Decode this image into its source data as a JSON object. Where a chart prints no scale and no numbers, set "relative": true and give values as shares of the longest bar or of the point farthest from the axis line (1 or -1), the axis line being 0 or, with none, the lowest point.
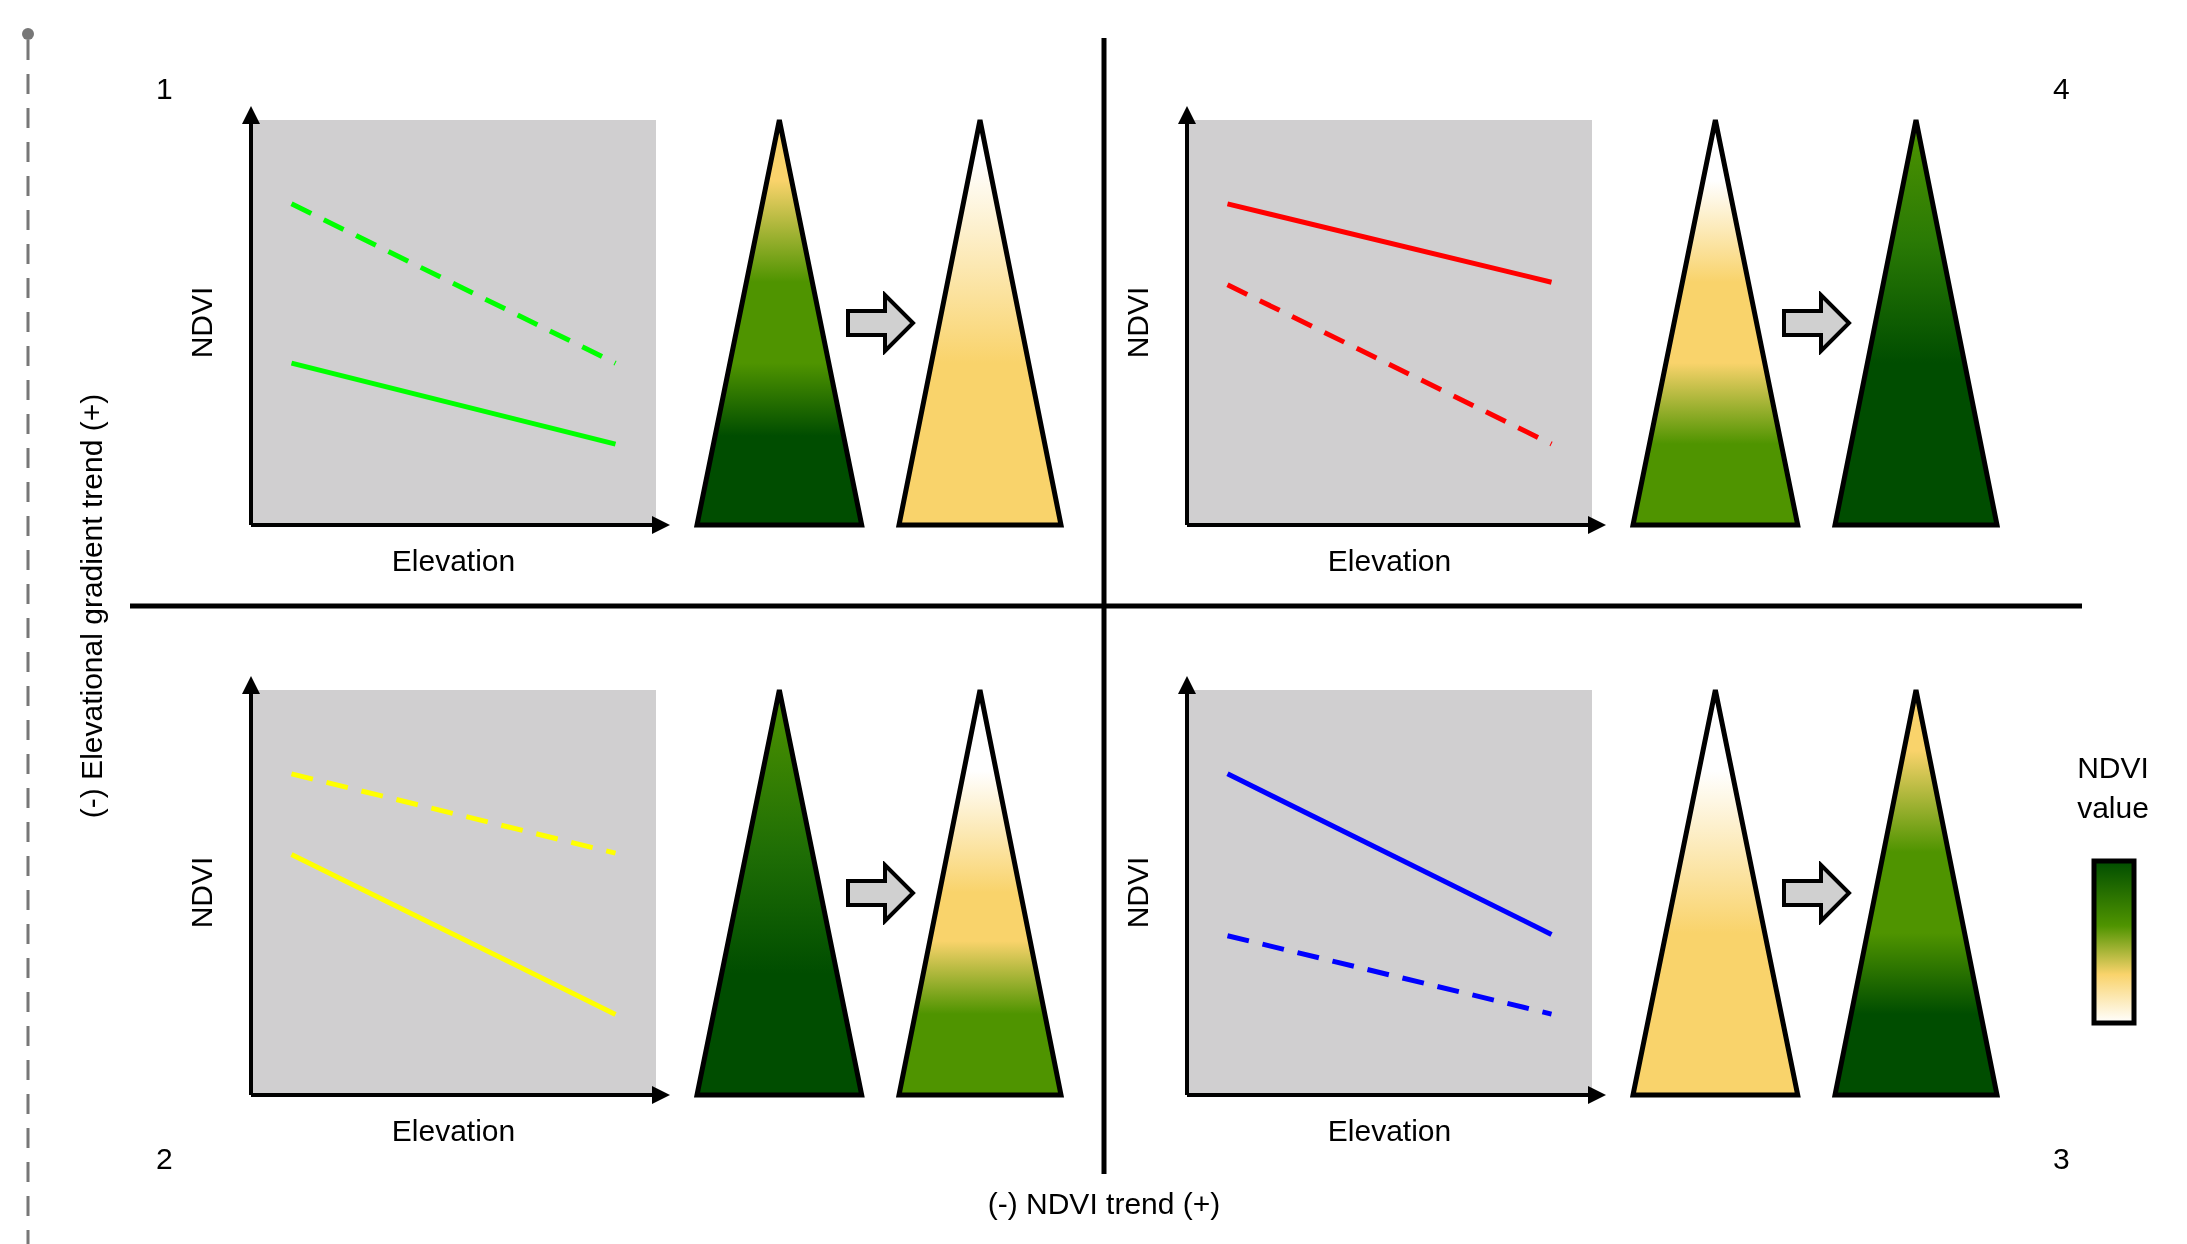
{
  "chart_data": [
    {
      "type": "line",
      "relative": true,
      "xlabel": "Elevation",
      "ylabel": "NDVI",
      "annotations": [
        "1"
      ],
      "categories": [
        null,
        null
      ],
      "series": [
        {
          "color": "#00ff00",
          "line_style": "dashed",
          "values": [
            1,
            0.504
          ]
        },
        {
          "color": "#00ff00",
          "line_style": "solid",
          "values": [
            0.504,
            0.252
          ]
        }
      ]
    },
    {
      "type": "line",
      "relative": true,
      "xlabel": "Elevation",
      "ylabel": "NDVI",
      "annotations": [
        "4"
      ],
      "categories": [
        null,
        null
      ],
      "series": [
        {
          "color": "#ff0000",
          "line_style": "solid",
          "values": [
            1,
            0.756
          ]
        },
        {
          "color": "#ff0000",
          "line_style": "dashed",
          "values": [
            0.748,
            0.252
          ]
        }
      ]
    },
    {
      "type": "line",
      "relative": true,
      "xlabel": "Elevation",
      "ylabel": "NDVI",
      "annotations": [
        "2"
      ],
      "categories": [
        null,
        null
      ],
      "series": [
        {
          "color": "#ffff00",
          "line_style": "dashed",
          "values": [
            1,
            0.753
          ]
        },
        {
          "color": "#ffff00",
          "line_style": "solid",
          "values": [
            0.749,
            0.251
          ]
        }
      ]
    },
    {
      "type": "line",
      "relative": true,
      "xlabel": "Elevation",
      "ylabel": "NDVI",
      "annotations": [
        "3"
      ],
      "categories": [
        null,
        null
      ],
      "series": [
        {
          "color": "#0000ff",
          "line_style": "solid",
          "values": [
            1,
            0.5
          ]
        },
        {
          "color": "#0000ff",
          "line_style": "dashed",
          "values": [
            0.496,
            0.252
          ]
        }
      ]
    },
    {
      "type": "other",
      "annotations": [
        "(-) Elevational gradient trend (+)",
        "(-) NDVI trend (+)",
        "NDVI value"
      ]
    }
  ]
}
